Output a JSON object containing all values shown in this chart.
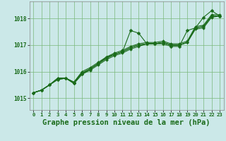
{
  "background_color": "#cbe8e8",
  "plot_bg_color": "#cbe8e8",
  "grid_color": "#7ab87a",
  "line_color": "#1a6b1a",
  "marker_color": "#1a6b1a",
  "xlabel": "Graphe pression niveau de la mer (hPa)",
  "xlabel_fontsize": 7.5,
  "tick_color": "#1a6b1a",
  "ylabel_ticks": [
    1015,
    1016,
    1017,
    1018
  ],
  "xlim": [
    -0.5,
    23.5
  ],
  "ylim": [
    1014.55,
    1018.65
  ],
  "xticks": [
    0,
    1,
    2,
    3,
    4,
    5,
    6,
    7,
    8,
    9,
    10,
    11,
    12,
    13,
    14,
    15,
    16,
    17,
    18,
    19,
    20,
    21,
    22,
    23
  ],
  "series": [
    [
      1015.2,
      1015.3,
      1015.5,
      1015.7,
      1015.75,
      1015.55,
      1015.9,
      1016.1,
      1016.3,
      1016.55,
      1016.65,
      1016.75,
      1017.55,
      1017.45,
      1017.05,
      1017.05,
      1017.05,
      1016.95,
      1016.95,
      1017.55,
      1017.65,
      1018.05,
      1018.3,
      1018.1
    ],
    [
      1015.2,
      1015.3,
      1015.5,
      1015.7,
      1015.75,
      1015.55,
      1015.9,
      1016.05,
      1016.25,
      1016.45,
      1016.6,
      1016.7,
      1016.85,
      1016.95,
      1017.05,
      1017.05,
      1017.1,
      1017.0,
      1017.0,
      1017.1,
      1017.6,
      1017.65,
      1018.05,
      1018.1
    ],
    [
      1015.2,
      1015.3,
      1015.5,
      1015.75,
      1015.75,
      1015.6,
      1015.95,
      1016.1,
      1016.3,
      1016.5,
      1016.65,
      1016.75,
      1016.9,
      1017.0,
      1017.05,
      1017.05,
      1017.1,
      1017.0,
      1017.0,
      1017.1,
      1017.65,
      1017.7,
      1018.1,
      1018.1
    ],
    [
      1015.2,
      1015.3,
      1015.5,
      1015.75,
      1015.75,
      1015.6,
      1015.95,
      1016.1,
      1016.3,
      1016.5,
      1016.65,
      1016.75,
      1016.9,
      1017.0,
      1017.05,
      1017.05,
      1017.1,
      1017.0,
      1017.0,
      1017.1,
      1017.65,
      1017.7,
      1018.1,
      1018.1
    ],
    [
      1015.2,
      1015.3,
      1015.5,
      1015.75,
      1015.75,
      1015.6,
      1016.0,
      1016.15,
      1016.35,
      1016.55,
      1016.7,
      1016.8,
      1016.95,
      1017.05,
      1017.1,
      1017.1,
      1017.15,
      1017.05,
      1017.05,
      1017.15,
      1017.7,
      1017.75,
      1018.15,
      1018.15
    ]
  ]
}
